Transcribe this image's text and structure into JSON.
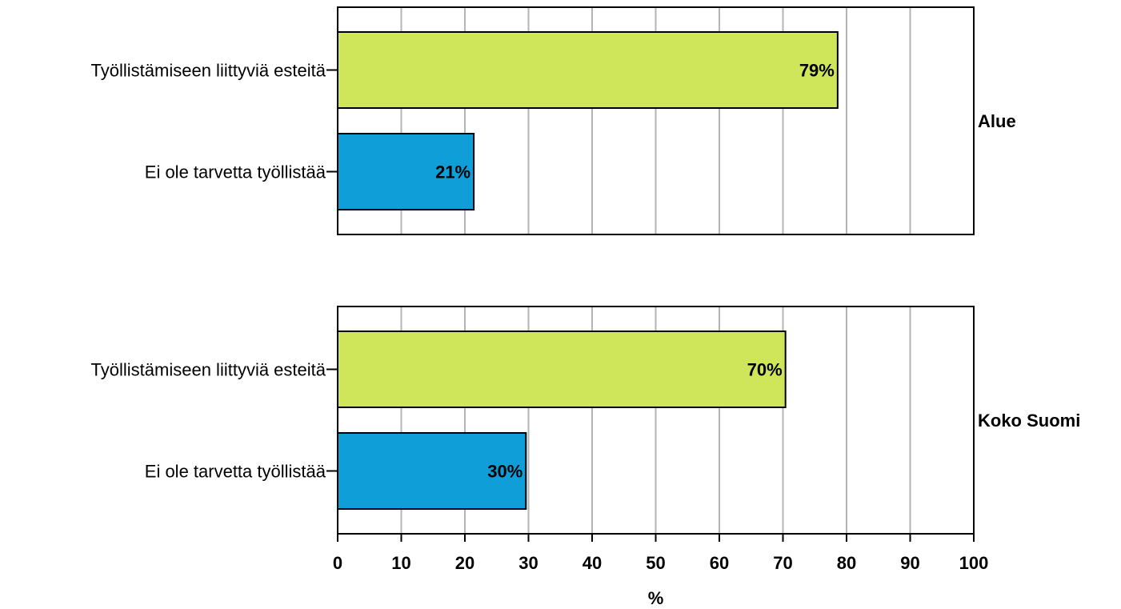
{
  "chart_data": {
    "type": "bar",
    "orientation": "horizontal",
    "xlabel": "%",
    "xlim": [
      0,
      100
    ],
    "xticks": [
      "0",
      "10",
      "20",
      "30",
      "40",
      "50",
      "60",
      "70",
      "80",
      "90",
      "100"
    ],
    "grid": "vertical",
    "colors": {
      "Työllistämiseen liittyviä esteitä": "#cfe65b",
      "Ei ole tarvetta työllistää": "#109ed9"
    },
    "panels": [
      {
        "name": "Alue",
        "categories": [
          "Työllistämiseen liittyviä esteitä",
          "Ei ole tarvetta työllistää"
        ],
        "values": [
          78.6,
          21.4
        ],
        "labels": [
          "79%",
          "21%"
        ]
      },
      {
        "name": "Koko Suomi",
        "categories": [
          "Työllistämiseen liittyviä esteitä",
          "Ei ole tarvetta työllistää"
        ],
        "values": [
          70.4,
          29.6
        ],
        "labels": [
          "70%",
          "30%"
        ]
      }
    ]
  }
}
